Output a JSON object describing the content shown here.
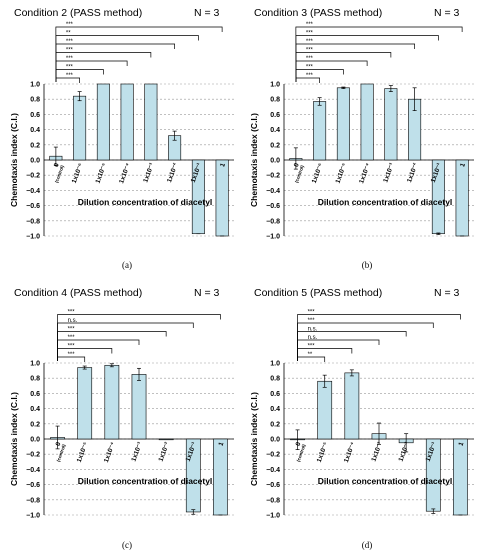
{
  "chart_data": [
    {
      "type": "bar",
      "title": "Condition 2 (PASS method)",
      "n_label": "N = 3",
      "panel_label": "(a)",
      "ylabel": "Chemotaxis index (C.I.)",
      "xlabel": "Dilution concentration of diacetyl",
      "ylim": [
        -1.0,
        1.0
      ],
      "yticks": [
        "1.0",
        "0.8",
        "0.6",
        "0.4",
        "0.2",
        "0.0",
        "−0.2",
        "−0.4",
        "−0.6",
        "−0.8",
        "−1.0"
      ],
      "categories": [
        "0",
        "1x10⁻⁶",
        "1x10⁻⁵",
        "1x10⁻⁴",
        "1x10⁻³",
        "1x10⁻²",
        "1x10⁻¹",
        "1"
      ],
      "category_sub": [
        "(control)",
        "",
        "",
        "",
        "",
        "",
        "",
        ""
      ],
      "values": [
        0.05,
        0.84,
        1.0,
        1.0,
        1.0,
        0.32,
        -0.97,
        -1.0
      ],
      "errors": [
        0.12,
        0.06,
        0.0,
        0.0,
        0.0,
        0.06,
        0.0,
        0.0
      ],
      "significance": [
        {
          "to": 1,
          "label": "***"
        },
        {
          "to": 2,
          "label": "***"
        },
        {
          "to": 3,
          "label": "***"
        },
        {
          "to": 4,
          "label": "***"
        },
        {
          "to": 5,
          "label": "***"
        },
        {
          "to": 6,
          "label": "**"
        },
        {
          "to": 7,
          "label": "***"
        }
      ]
    },
    {
      "type": "bar",
      "title": "Condition 3 (PASS method)",
      "n_label": "N = 3",
      "panel_label": "(b)",
      "ylabel": "Chemotaxis index (C.I.)",
      "xlabel": "Dilution concentration of diacetyl",
      "ylim": [
        -1.0,
        1.0
      ],
      "yticks": [
        "1.0",
        "0.8",
        "0.6",
        "0.4",
        "0.2",
        "0.0",
        "−0.2",
        "−0.4",
        "−0.6",
        "−0.8",
        "−1.0"
      ],
      "categories": [
        "0",
        "1x10⁻⁶",
        "1x10⁻⁵",
        "1x10⁻⁴",
        "1x10⁻³",
        "1x10⁻²",
        "1x10⁻¹",
        "1"
      ],
      "category_sub": [
        "(control)",
        "",
        "",
        "",
        "",
        "",
        "",
        ""
      ],
      "values": [
        0.02,
        0.77,
        0.95,
        1.0,
        0.94,
        0.8,
        -0.97,
        -1.0
      ],
      "errors": [
        0.14,
        0.05,
        0.01,
        0.0,
        0.04,
        0.15,
        0.01,
        0.0
      ],
      "significance": [
        {
          "to": 1,
          "label": "***"
        },
        {
          "to": 2,
          "label": "***"
        },
        {
          "to": 3,
          "label": "***"
        },
        {
          "to": 4,
          "label": "***"
        },
        {
          "to": 5,
          "label": "***"
        },
        {
          "to": 6,
          "label": "***"
        },
        {
          "to": 7,
          "label": "***"
        }
      ]
    },
    {
      "type": "bar",
      "title": "Condition 4 (PASS method)",
      "n_label": "N = 3",
      "panel_label": "(c)",
      "ylabel": "Chemotaxis index (C.I.)",
      "xlabel": "Dilution concentration of diacetyl",
      "ylim": [
        -1.0,
        1.0
      ],
      "yticks": [
        "1.0",
        "0.8",
        "0.6",
        "0.4",
        "0.2",
        "0.0",
        "−0.2",
        "−0.4",
        "−0.6",
        "−0.8",
        "−1.0"
      ],
      "categories": [
        "0",
        "1x10⁻⁵",
        "1x10⁻⁴",
        "1x10⁻³",
        "1x10⁻²",
        "1x10⁻¹",
        "1"
      ],
      "category_sub": [
        "(control)",
        "",
        "",
        "",
        "",
        "",
        ""
      ],
      "values": [
        0.02,
        0.94,
        0.97,
        0.85,
        0.0,
        -0.96,
        -1.0
      ],
      "errors": [
        0.15,
        0.02,
        0.02,
        0.08,
        0.0,
        0.03,
        0.0
      ],
      "significance": [
        {
          "to": 1,
          "label": "***"
        },
        {
          "to": 2,
          "label": "***"
        },
        {
          "to": 3,
          "label": "***"
        },
        {
          "to": 4,
          "label": "***"
        },
        {
          "to": 5,
          "label": "n.s."
        },
        {
          "to": 6,
          "label": "***"
        }
      ]
    },
    {
      "type": "bar",
      "title": "Condition 5 (PASS method)",
      "n_label": "N = 3",
      "panel_label": "(d)",
      "ylabel": "Chemotaxis index (C.I.)",
      "xlabel": "Dilution concentration of diacetyl",
      "ylim": [
        -1.0,
        1.0
      ],
      "yticks": [
        "1.0",
        "0.8",
        "0.6",
        "0.4",
        "0.2",
        "0.0",
        "−0.2",
        "−0.4",
        "−0.6",
        "−0.8",
        "−1.0"
      ],
      "categories": [
        "0",
        "1x10⁻⁵",
        "1x10⁻⁴",
        "1x10⁻³",
        "1x10⁻²",
        "1x10⁻¹",
        "1"
      ],
      "category_sub": [
        "(control)",
        "",
        "",
        "",
        "",
        "",
        ""
      ],
      "values": [
        -0.01,
        0.76,
        0.87,
        0.07,
        -0.05,
        -0.95,
        -1.0
      ],
      "errors": [
        0.13,
        0.08,
        0.04,
        0.14,
        0.12,
        0.03,
        0.0
      ],
      "significance": [
        {
          "to": 1,
          "label": "**"
        },
        {
          "to": 2,
          "label": "***"
        },
        {
          "to": 3,
          "label": "n.s."
        },
        {
          "to": 4,
          "label": "n.s."
        },
        {
          "to": 5,
          "label": "***"
        },
        {
          "to": 6,
          "label": "***"
        }
      ]
    }
  ]
}
